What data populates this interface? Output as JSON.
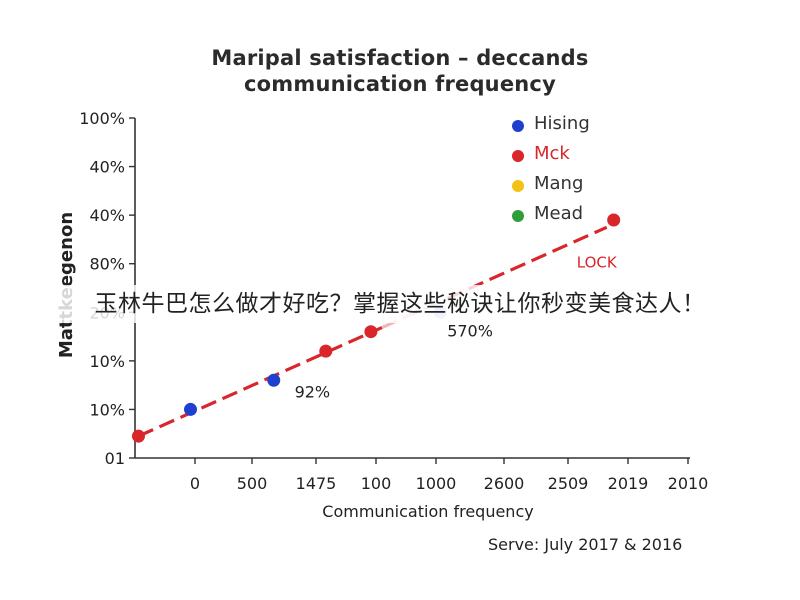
{
  "overlay": {
    "text": "玉林牛巴怎么做才好吃？掌握这些秘诀让你秒变美食达人！"
  },
  "colors": {
    "hising": "#1f3fcf",
    "mck": "#d8262a",
    "mck_faded": "#f0a2a6",
    "hising_faded": "#a9b7ee",
    "mang": "#f2c314",
    "mead": "#2f9e3a",
    "axis": "#333333",
    "trend": "#d8262a",
    "trend_faded": "#f2b4b4"
  },
  "chart_data": {
    "type": "scatter",
    "title": "Maripal satisfaction – deccands communication frequency",
    "title_lines": [
      "Maripal satisfaction – deccands",
      "communication frequency"
    ],
    "xlabel": "Communication frequency",
    "ylabel": "Mattkeegenon",
    "x_ticks": [
      "0",
      "500",
      "1475",
      "100",
      "1000",
      "2600",
      "2509",
      "2019",
      "2010"
    ],
    "y_ticks": [
      "01",
      "10%",
      "10%",
      "20%",
      "80%",
      "40%",
      "40%",
      "100%"
    ],
    "legend_position": "top-right",
    "grid": false,
    "series": [
      {
        "name": "Hising",
        "color_key": "hising",
        "points": [
          {
            "x": 0.8,
            "y": 1.0
          },
          {
            "x": 2.0,
            "y": 1.6
          },
          {
            "x": 4.4,
            "y": 3.0
          }
        ]
      },
      {
        "name": "Mck",
        "color_key": "mck",
        "points": [
          {
            "x": 0.05,
            "y": 0.45
          },
          {
            "x": 2.75,
            "y": 2.2
          },
          {
            "x": 3.4,
            "y": 2.6
          },
          {
            "x": 6.9,
            "y": 4.9
          }
        ]
      },
      {
        "name": "Mang",
        "color_key": "mang",
        "points": []
      },
      {
        "name": "Mead",
        "color_key": "mead",
        "points": []
      }
    ],
    "trendline": {
      "from": {
        "x": 0.05,
        "y": 0.45
      },
      "to": {
        "x": 6.8,
        "y": 4.75
      },
      "label": "LOCK"
    },
    "annotations": [
      {
        "text": "92%",
        "x": 2.3,
        "y": 1.25
      },
      {
        "text": "570%",
        "x": 4.5,
        "y": 2.5
      }
    ],
    "xlim": [
      0,
      8
    ],
    "ylim": [
      0,
      7
    ]
  },
  "source_note": "Serve: July 2017 & 2016"
}
